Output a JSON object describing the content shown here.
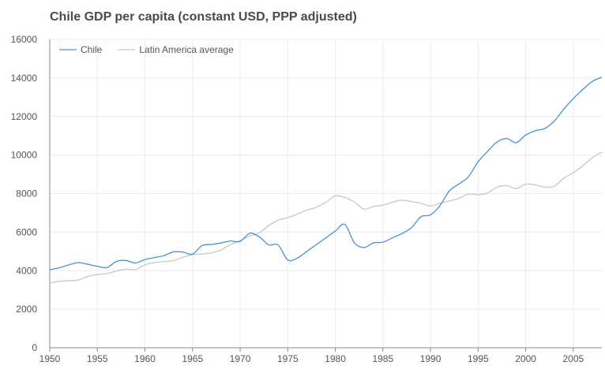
{
  "chart_data": {
    "type": "line",
    "title": "Chile GDP per capita (constant USD, PPP adjusted)",
    "xlabel": "",
    "ylabel": "",
    "xlim": [
      1950,
      2008
    ],
    "ylim": [
      0,
      16000
    ],
    "x_ticks": [
      1950,
      1955,
      1960,
      1965,
      1970,
      1975,
      1980,
      1985,
      1990,
      1995,
      2000,
      2005
    ],
    "y_ticks": [
      0,
      2000,
      4000,
      6000,
      8000,
      10000,
      12000,
      14000,
      16000
    ],
    "grid": true,
    "legend_position": "top-left",
    "x": [
      1950,
      1951,
      1952,
      1953,
      1954,
      1955,
      1956,
      1957,
      1958,
      1959,
      1960,
      1961,
      1962,
      1963,
      1964,
      1965,
      1966,
      1967,
      1968,
      1969,
      1970,
      1971,
      1972,
      1973,
      1974,
      1975,
      1976,
      1977,
      1978,
      1979,
      1980,
      1981,
      1982,
      1983,
      1984,
      1985,
      1986,
      1987,
      1988,
      1989,
      1990,
      1991,
      1992,
      1993,
      1994,
      1995,
      1996,
      1997,
      1998,
      1999,
      2000,
      2001,
      2002,
      2003,
      2004,
      2005,
      2006,
      2007,
      2008
    ],
    "series": [
      {
        "name": "Chile",
        "color": "#4a90d9",
        "values": [
          4050,
          4150,
          4300,
          4420,
          4330,
          4230,
          4160,
          4480,
          4530,
          4400,
          4580,
          4680,
          4780,
          4980,
          4960,
          4860,
          5300,
          5360,
          5440,
          5540,
          5520,
          5940,
          5760,
          5340,
          5330,
          4560,
          4650,
          5000,
          5350,
          5700,
          6060,
          6400,
          5450,
          5200,
          5440,
          5480,
          5700,
          5930,
          6230,
          6800,
          6900,
          7380,
          8150,
          8500,
          8880,
          9650,
          10190,
          10680,
          10860,
          10640,
          11040,
          11260,
          11380,
          11760,
          12380,
          12930,
          13400,
          13820,
          14040
        ]
      },
      {
        "name": "Latin America average",
        "color": "#c8c8c8",
        "values": [
          3350,
          3450,
          3480,
          3520,
          3700,
          3800,
          3850,
          3980,
          4080,
          4060,
          4300,
          4420,
          4470,
          4520,
          4700,
          4830,
          4870,
          4930,
          5080,
          5360,
          5560,
          5800,
          5960,
          6340,
          6620,
          6750,
          6930,
          7140,
          7290,
          7550,
          7880,
          7800,
          7560,
          7190,
          7330,
          7400,
          7550,
          7660,
          7580,
          7500,
          7360,
          7500,
          7620,
          7760,
          7980,
          7940,
          8030,
          8340,
          8410,
          8260,
          8490,
          8450,
          8340,
          8380,
          8800,
          9080,
          9440,
          9860,
          10150
        ]
      }
    ]
  }
}
